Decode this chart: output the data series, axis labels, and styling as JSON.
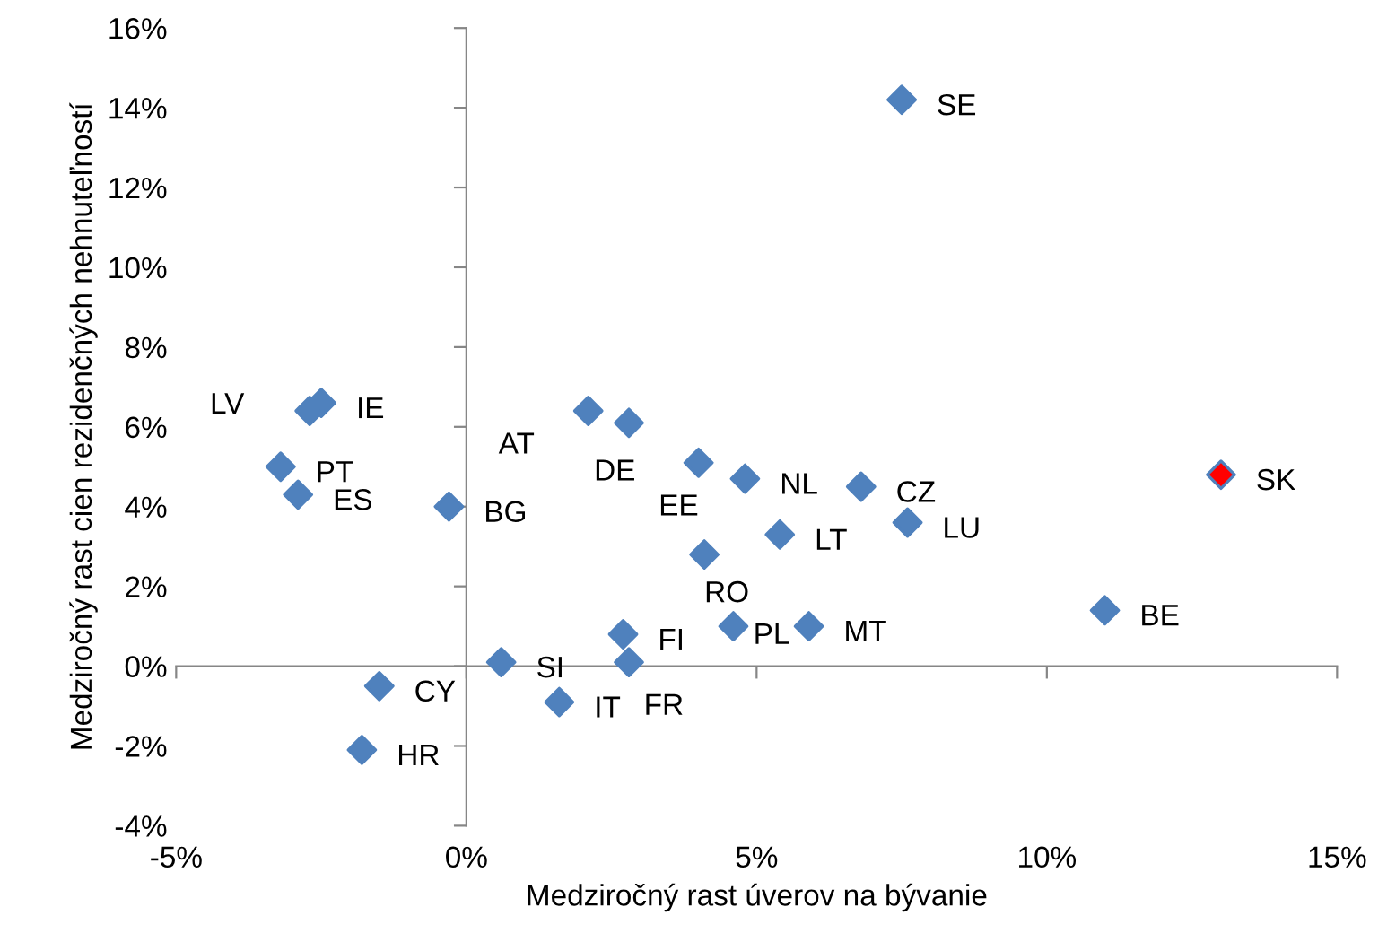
{
  "chart_data": {
    "type": "scatter",
    "xlabel": "Medziročný rast úverov na bývanie",
    "ylabel": "Medziročný rast cien rezidenčných nehnuteľností",
    "marker": "diamond",
    "xlim": [
      -5,
      15
    ],
    "xticks": [
      {
        "value": -5,
        "label": "-5%"
      },
      {
        "value": 0,
        "label": "0%"
      },
      {
        "value": 5,
        "label": "5%"
      },
      {
        "value": 10,
        "label": "10%"
      },
      {
        "value": 15,
        "label": "15%"
      }
    ],
    "ylim": [
      -4,
      16
    ],
    "yticks": [
      {
        "value": -4,
        "label": "-4%"
      },
      {
        "value": -2,
        "label": "-2%"
      },
      {
        "value": 0,
        "label": "0%"
      },
      {
        "value": 2,
        "label": "2%"
      },
      {
        "value": 4,
        "label": "4%"
      },
      {
        "value": 6,
        "label": "6%"
      },
      {
        "value": 8,
        "label": "8%"
      },
      {
        "value": 10,
        "label": "10%"
      },
      {
        "value": 12,
        "label": "12%"
      },
      {
        "value": 14,
        "label": "14%"
      },
      {
        "value": 16,
        "label": "16%"
      }
    ],
    "x": [
      7.5,
      -2.5,
      -2.7,
      -3.2,
      -2.9,
      -0.3,
      2.1,
      2.8,
      4.0,
      4.8,
      6.8,
      7.6,
      13.0,
      5.4,
      4.1,
      11.0,
      4.6,
      5.9,
      2.7,
      2.8,
      0.6,
      1.6,
      -1.5,
      -1.8
    ],
    "values": [
      14.2,
      6.6,
      6.4,
      5.0,
      4.3,
      4.0,
      6.4,
      6.1,
      5.1,
      4.7,
      4.5,
      3.6,
      4.8,
      3.3,
      2.8,
      1.4,
      1.0,
      1.0,
      0.8,
      0.1,
      0.1,
      -0.9,
      -0.5,
      -2.1
    ],
    "value_labels": [
      "SE",
      "IE",
      "LV",
      "PT",
      "ES",
      "BG",
      "AT",
      "DE",
      "EE",
      "NL",
      "CZ",
      "LU",
      "SK",
      "LT",
      "RO",
      "BE",
      "PL",
      "MT",
      "FI",
      "FR",
      "SI",
      "IT",
      "CY",
      "HR"
    ],
    "colors": [
      "#4f81bd",
      "#4f81bd",
      "#4f81bd",
      "#4f81bd",
      "#4f81bd",
      "#4f81bd",
      "#4f81bd",
      "#4f81bd",
      "#4f81bd",
      "#4f81bd",
      "#4f81bd",
      "#4f81bd",
      "#ff0000",
      "#4f81bd",
      "#4f81bd",
      "#4f81bd",
      "#4f81bd",
      "#4f81bd",
      "#4f81bd",
      "#4f81bd",
      "#4f81bd",
      "#4f81bd",
      "#4f81bd",
      "#4f81bd"
    ]
  }
}
